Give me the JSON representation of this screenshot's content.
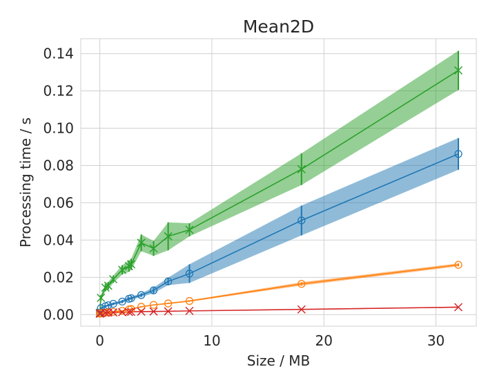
{
  "chart_data": {
    "type": "line",
    "title": "Mean2D",
    "xlabel": "Size / MB",
    "ylabel": "Processing time / s",
    "xlim": [
      -1.7,
      33.6
    ],
    "ylim": [
      -0.0062,
      0.148
    ],
    "xticks": [
      0,
      10,
      20,
      30
    ],
    "xtick_labels": [
      "0",
      "10",
      "20",
      "30"
    ],
    "yticks": [
      0.0,
      0.02,
      0.04,
      0.06,
      0.08,
      0.1,
      0.12,
      0.14
    ],
    "ytick_labels": [
      "0.00",
      "0.02",
      "0.04",
      "0.06",
      "0.08",
      "0.10",
      "0.12",
      "0.14"
    ],
    "grid": true,
    "background": "#ffffff",
    "grid_color": "#d0d0d0",
    "series": [
      {
        "color": "#2ca02c",
        "marker": "x",
        "x": [
          0.0,
          0.1,
          0.5,
          0.75,
          1.2,
          2.0,
          2.6,
          2.8,
          3.7,
          4.8,
          6.1,
          8.0,
          18.0,
          32.0
        ],
        "y": [
          0.001,
          0.009,
          0.0145,
          0.0155,
          0.019,
          0.024,
          0.026,
          0.027,
          0.0385,
          0.0355,
          0.042,
          0.0455,
          0.078,
          0.131
        ],
        "err": [
          0.0005,
          0.0015,
          0.002,
          0.002,
          0.002,
          0.0025,
          0.003,
          0.003,
          0.0045,
          0.004,
          0.0075,
          0.0035,
          0.0085,
          0.0105
        ]
      },
      {
        "color": "#1f77b4",
        "marker": "o",
        "x": [
          0.0,
          0.1,
          0.5,
          0.75,
          1.2,
          2.0,
          2.6,
          2.8,
          3.7,
          4.8,
          6.1,
          8.0,
          18.0,
          32.0
        ],
        "y": [
          0.001,
          0.0035,
          0.0045,
          0.005,
          0.0058,
          0.007,
          0.0085,
          0.0088,
          0.0105,
          0.013,
          0.0178,
          0.022,
          0.0505,
          0.0862
        ],
        "err": [
          0.0003,
          0.0005,
          0.0006,
          0.0006,
          0.0007,
          0.0008,
          0.0008,
          0.0008,
          0.001,
          0.0015,
          0.002,
          0.005,
          0.008,
          0.0085
        ]
      },
      {
        "color": "#ff7f0e",
        "marker": "o",
        "x": [
          0.0,
          0.1,
          0.5,
          0.75,
          1.2,
          2.0,
          2.6,
          2.8,
          3.7,
          4.8,
          6.1,
          8.0,
          18.0,
          32.0
        ],
        "y": [
          0.0005,
          0.0008,
          0.001,
          0.0012,
          0.0015,
          0.002,
          0.0028,
          0.003,
          0.0042,
          0.0052,
          0.006,
          0.0073,
          0.0165,
          0.0267
        ],
        "err": [
          0.0001,
          0.0001,
          0.0001,
          0.0001,
          0.0002,
          0.0002,
          0.0002,
          0.0002,
          0.0003,
          0.0003,
          0.0003,
          0.0004,
          0.0009,
          0.0008
        ]
      },
      {
        "color": "#d62728",
        "marker": "x",
        "x": [
          0.0,
          0.1,
          0.5,
          0.75,
          1.2,
          2.0,
          2.6,
          2.8,
          3.7,
          4.8,
          6.1,
          8.0,
          18.0,
          32.0
        ],
        "y": [
          0.0005,
          0.0008,
          0.001,
          0.0011,
          0.0012,
          0.0013,
          0.0014,
          0.0015,
          0.0016,
          0.0017,
          0.0018,
          0.002,
          0.0028,
          0.004
        ],
        "err": [
          0.0001,
          0.0001,
          0.0001,
          0.0001,
          0.0001,
          0.0001,
          0.0001,
          0.0001,
          0.0001,
          0.0001,
          0.0001,
          0.0001,
          0.0002,
          0.0003
        ]
      }
    ]
  }
}
